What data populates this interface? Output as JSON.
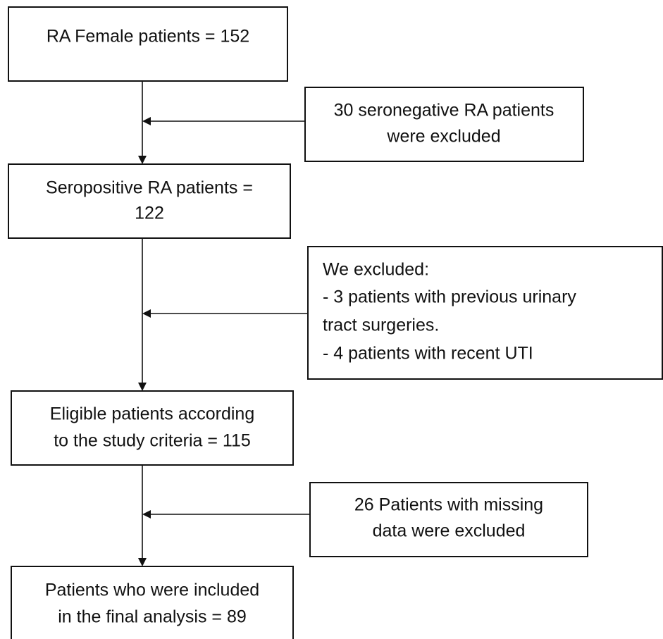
{
  "nodes": [
    {
      "lines": [
        "RA Female patients = 152"
      ]
    },
    {
      "lines": [
        "30 seronegative RA patients",
        "were excluded"
      ]
    },
    {
      "lines": [
        "Seropositive RA patients =",
        "122"
      ]
    },
    {
      "lines": [
        "We excluded:",
        "- 3 patients with previous urinary",
        "tract surgeries.",
        "- 4 patients with recent UTI"
      ]
    },
    {
      "lines": [
        "Eligible patients according",
        "to the study criteria = 115"
      ]
    },
    {
      "lines": [
        "26 Patients with missing",
        "data were excluded"
      ]
    },
    {
      "lines": [
        "Patients who were included",
        "in the final analysis = 89"
      ]
    }
  ]
}
